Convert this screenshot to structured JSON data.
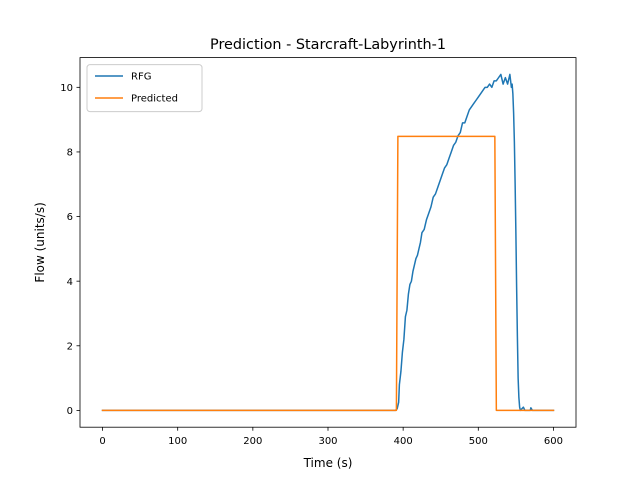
{
  "chart_data": {
    "type": "line",
    "title": "Prediction - Starcraft-Labyrinth-1",
    "xlabel": "Time (s)",
    "ylabel": "Flow (units/s)",
    "xlim": [
      -30,
      630
    ],
    "ylim": [
      -0.52,
      10.92
    ],
    "xticks": [
      0,
      100,
      200,
      300,
      400,
      500,
      600
    ],
    "yticks": [
      0,
      2,
      4,
      6,
      8,
      10
    ],
    "xtick_labels": [
      "0",
      "100",
      "200",
      "300",
      "400",
      "500",
      "600"
    ],
    "ytick_labels": [
      "0",
      "2",
      "4",
      "6",
      "8",
      "10"
    ],
    "grid": false,
    "legend_position": "top-left",
    "series": [
      {
        "name": "RFG",
        "color": "#1f77b4",
        "points": [
          [
            0,
            0
          ],
          [
            390,
            0
          ],
          [
            392,
            0.05
          ],
          [
            394,
            0.25
          ],
          [
            395,
            0.8
          ],
          [
            397,
            1.2
          ],
          [
            399,
            1.8
          ],
          [
            401,
            2.2
          ],
          [
            403,
            2.9
          ],
          [
            405,
            3.1
          ],
          [
            407,
            3.6
          ],
          [
            409,
            3.9
          ],
          [
            411,
            4.0
          ],
          [
            413,
            4.3
          ],
          [
            415,
            4.5
          ],
          [
            417,
            4.7
          ],
          [
            419,
            4.8
          ],
          [
            421,
            5.0
          ],
          [
            423,
            5.2
          ],
          [
            425,
            5.5
          ],
          [
            428,
            5.6
          ],
          [
            431,
            5.9
          ],
          [
            434,
            6.1
          ],
          [
            437,
            6.3
          ],
          [
            440,
            6.6
          ],
          [
            443,
            6.7
          ],
          [
            446,
            6.9
          ],
          [
            449,
            7.1
          ],
          [
            452,
            7.3
          ],
          [
            455,
            7.5
          ],
          [
            458,
            7.6
          ],
          [
            461,
            7.8
          ],
          [
            464,
            8.0
          ],
          [
            467,
            8.2
          ],
          [
            470,
            8.3
          ],
          [
            473,
            8.5
          ],
          [
            476,
            8.6
          ],
          [
            479,
            8.9
          ],
          [
            482,
            8.9
          ],
          [
            485,
            9.1
          ],
          [
            488,
            9.3
          ],
          [
            491,
            9.4
          ],
          [
            494,
            9.5
          ],
          [
            497,
            9.6
          ],
          [
            500,
            9.7
          ],
          [
            503,
            9.8
          ],
          [
            506,
            9.9
          ],
          [
            509,
            10.0
          ],
          [
            512,
            10.0
          ],
          [
            515,
            10.1
          ],
          [
            518,
            10.0
          ],
          [
            521,
            10.2
          ],
          [
            524,
            10.2
          ],
          [
            527,
            10.3
          ],
          [
            530,
            10.4
          ],
          [
            533,
            10.1
          ],
          [
            536,
            10.3
          ],
          [
            539,
            10.1
          ],
          [
            542,
            10.4
          ],
          [
            544,
            10.0
          ],
          [
            545,
            10.1
          ],
          [
            546,
            9.8
          ],
          [
            547,
            9.2
          ],
          [
            548,
            8.3
          ],
          [
            549,
            7.0
          ],
          [
            550,
            5.5
          ],
          [
            551,
            3.8
          ],
          [
            552,
            2.3
          ],
          [
            553,
            1.0
          ],
          [
            554,
            0.4
          ],
          [
            555,
            0.1
          ],
          [
            556,
            0
          ],
          [
            560,
            0.1
          ],
          [
            562,
            0
          ],
          [
            569,
            0
          ],
          [
            570,
            0.08
          ],
          [
            572,
            0
          ],
          [
            600,
            0
          ]
        ]
      },
      {
        "name": "Predicted",
        "color": "#ff7f0e",
        "points": [
          [
            0,
            0
          ],
          [
            391,
            0
          ],
          [
            393,
            8.48
          ],
          [
            522,
            8.48
          ],
          [
            524,
            0
          ],
          [
            600,
            0
          ]
        ]
      }
    ]
  }
}
